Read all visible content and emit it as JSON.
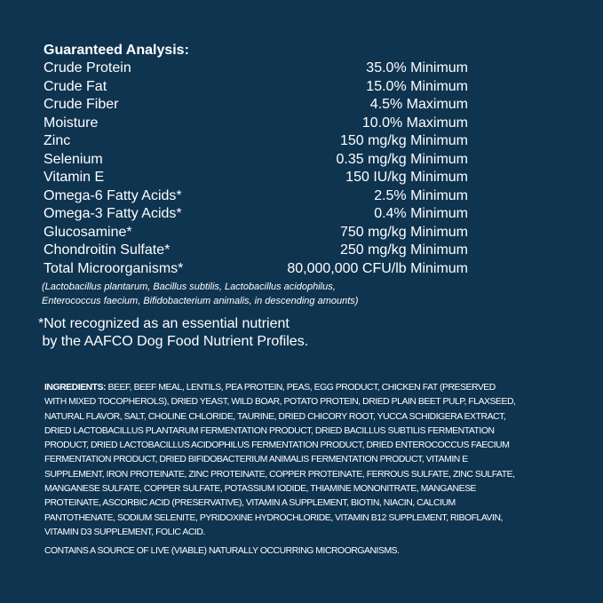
{
  "analysis": {
    "title": "Guaranteed Analysis:",
    "rows": [
      {
        "name": "Crude Protein",
        "value": "35.0% Minimum"
      },
      {
        "name": "Crude Fat",
        "value": "15.0% Minimum"
      },
      {
        "name": "Crude Fiber",
        "value": "4.5% Maximum"
      },
      {
        "name": "Moisture",
        "value": "10.0% Maximum"
      },
      {
        "name": "Zinc",
        "value": "150 mg/kg Minimum"
      },
      {
        "name": "Selenium",
        "value": "0.35 mg/kg Minimum"
      },
      {
        "name": "Vitamin E",
        "value": "150 IU/kg Minimum"
      },
      {
        "name": "Omega-6 Fatty Acids*",
        "value": "2.5% Minimum"
      },
      {
        "name": "Omega-3 Fatty Acids*",
        "value": "0.4% Minimum"
      },
      {
        "name": "Glucosamine*",
        "value": "750 mg/kg Minimum"
      },
      {
        "name": "Chondroitin Sulfate*",
        "value": "250 mg/kg Minimum"
      },
      {
        "name": "Total Microorganisms*",
        "value": "80,000,000 CFU/lb Minimum"
      }
    ],
    "note_lines": [
      "(Lactobacillus plantarum, Bacillus subtilis, Lactobacillus acidophilus,",
      "Enterococcus faecium, Bifidobacterium animalis, in descending amounts)"
    ]
  },
  "footnote_lines": [
    "*Not recognized as an essential nutrient",
    " by the AAFCO Dog Food Nutrient Profiles."
  ],
  "ingredients": {
    "label": "INGREDIENTS:",
    "lines": [
      " BEEF, BEEF MEAL, LENTILS, PEA PROTEIN, PEAS, EGG PRODUCT, CHICKEN FAT (PRESERVED",
      "WITH MIXED TOCOPHEROLS), DRIED YEAST, WILD BOAR, POTATO PROTEIN, DRIED PLAIN BEET PULP, FLAXSEED,",
      "NATURAL FLAVOR, SALT, CHOLINE CHLORIDE, TAURINE, DRIED CHICORY ROOT, YUCCA SCHIDIGERA EXTRACT,",
      "DRIED LACTOBACILLUS PLANTARUM FERMENTATION PRODUCT, DRIED BACILLUS SUBTILIS FERMENTATION",
      "PRODUCT, DRIED LACTOBACILLUS ACIDOPHILUS FERMENTATION PRODUCT, DRIED ENTEROCOCCUS FAECIUM",
      "FERMENTATION PRODUCT, DRIED BIFIDOBACTERIUM ANIMALIS FERMENTATION PRODUCT, VITAMIN E",
      "SUPPLEMENT, IRON PROTEINATE, ZINC PROTEINATE, COPPER PROTEINATE, FERROUS SULFATE, ZINC SULFATE,",
      "MANGANESE SULFATE, COPPER SULFATE, POTASSIUM IODIDE, THIAMINE MONONITRATE, MANGANESE",
      "PROTEINATE, ASCORBIC ACID (PRESERVATIVE), VITAMIN A SUPPLEMENT, BIOTIN, NIACIN, CALCIUM",
      "PANTOTHENATE, SODIUM SELENITE, PYRIDOXINE HYDROCHLORIDE, VITAMIN B12 SUPPLEMENT, RIBOFLAVIN,",
      "VITAMIN D3 SUPPLEMENT, FOLIC ACID."
    ],
    "live_statement": "CONTAINS A SOURCE OF LIVE (VIABLE) NATURALLY OCCURRING MICROORGANISMS."
  }
}
